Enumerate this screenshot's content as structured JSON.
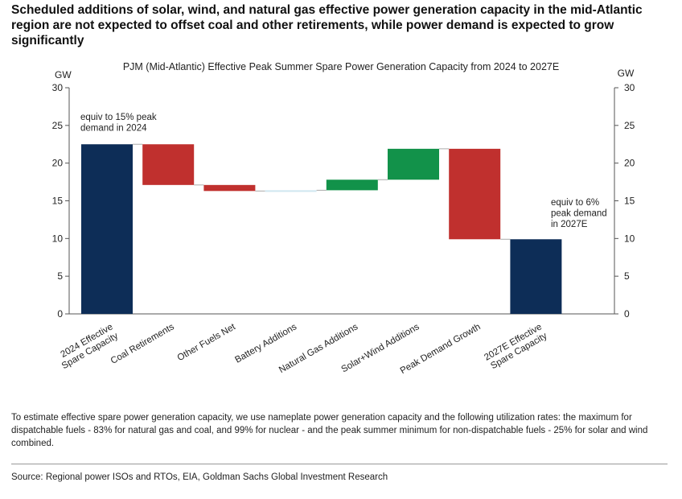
{
  "headline": "Scheduled additions of solar, wind, and natural gas effective power generation capacity in the mid-Atlantic region are not expected to offset coal and other retirements, while power demand is expected to grow significantly",
  "chart_data": {
    "type": "waterfall",
    "title": "PJM (Mid-Atlantic) Effective Peak Summer Spare Power Generation Capacity from 2024 to 2027E",
    "ylabel_left": "GW",
    "ylabel_right": "GW",
    "ylim": [
      0,
      30
    ],
    "yticks": [
      0,
      5,
      10,
      15,
      20,
      25,
      30
    ],
    "grid": false,
    "categories": [
      "2024 Effective Spare Capacity",
      "Coal Retirements",
      "Other Fuels Net",
      "Battery Additions",
      "Natural Gas Additions",
      "Solar+Wind Additions",
      "Peak Demand Growth",
      "2027E Effective Spare Capacity"
    ],
    "category_label_lines": [
      [
        "2024 Effective",
        "Spare Capacity"
      ],
      [
        "Coal Retirements"
      ],
      [
        "Other Fuels Net"
      ],
      [
        "Battery Additions"
      ],
      [
        "Natural Gas Additions"
      ],
      [
        "Solar+Wind Additions"
      ],
      [
        "Peak Demand Growth"
      ],
      [
        "2027E Effective",
        "Spare Capacity"
      ]
    ],
    "bars": [
      {
        "kind": "total",
        "start": 0,
        "end": 22.5
      },
      {
        "kind": "decrease",
        "start": 22.5,
        "end": 17.1
      },
      {
        "kind": "decrease",
        "start": 17.1,
        "end": 16.3
      },
      {
        "kind": "increase",
        "start": 16.3,
        "end": 16.4
      },
      {
        "kind": "increase",
        "start": 16.4,
        "end": 17.8
      },
      {
        "kind": "increase",
        "start": 17.8,
        "end": 21.9
      },
      {
        "kind": "decrease",
        "start": 21.9,
        "end": 9.9
      },
      {
        "kind": "total",
        "start": 0,
        "end": 9.9
      }
    ],
    "annotations": [
      {
        "bar": 0,
        "lines": [
          "equiv to 15% peak",
          "demand in 2024"
        ]
      },
      {
        "bar": 7,
        "lines": [
          "equiv to 6%",
          "peak demand",
          "in 2027E"
        ]
      }
    ],
    "colors": {
      "total": "#0d2d57",
      "decrease": "#c0302e",
      "increase": "#12924a",
      "battery": "#cfe6f0",
      "connector": "#aaaaaa"
    }
  },
  "footnote": "To estimate effective spare power generation capacity, we use nameplate power generation capacity and the following utilization rates: the maximum for dispatchable fuels - 83% for natural gas and coal, and 99% for nuclear - and the peak summer minimum for non-dispatchable fuels - 25% for solar and wind combined.",
  "source": "Source: Regional power ISOs and RTOs, EIA, Goldman Sachs Global Investment Research"
}
